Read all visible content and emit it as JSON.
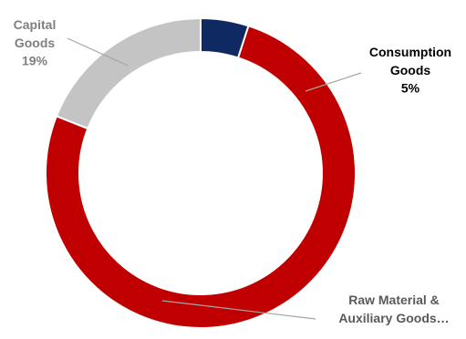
{
  "chart_data": {
    "type": "donut",
    "categories": [
      "Consumption Goods",
      "Raw Material & Auxiliary Goods…",
      "Capital Goods"
    ],
    "values": [
      5,
      76,
      19
    ],
    "value_labels": [
      "5%",
      null,
      "19%"
    ],
    "colors": [
      "#0f2a63",
      "#c00000",
      "#c4c4c4"
    ],
    "label_colors": [
      "#000000",
      "#595959",
      "#7f7f7f"
    ]
  }
}
